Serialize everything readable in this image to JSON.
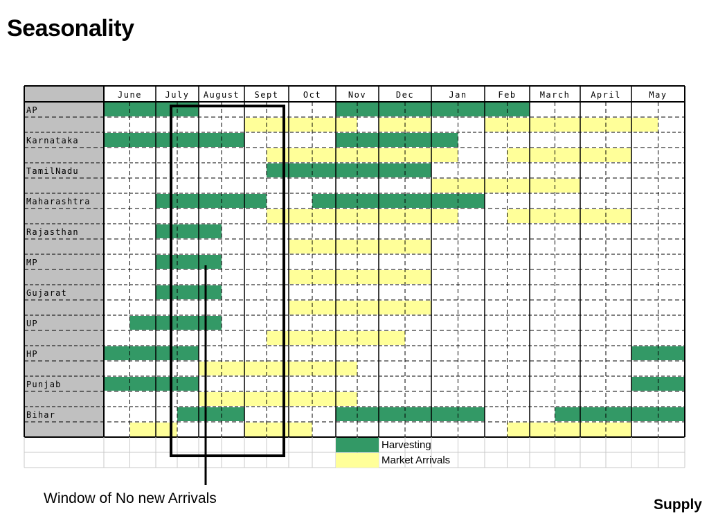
{
  "page": {
    "title": "Seasonality",
    "annotation": "Window of No new Arrivals",
    "section": "Supply"
  },
  "colors": {
    "harvesting": "#339966",
    "market_arrivals": "#ffff99",
    "state_column": "#c0c0c0"
  },
  "chart_data": {
    "type": "table",
    "months": [
      "June",
      "July",
      "August",
      "Sept",
      "Oct",
      "Nov",
      "Dec",
      "Jan",
      "Feb",
      "March",
      "April",
      "May"
    ],
    "rows": [
      {
        "state": "AP",
        "harvesting": [
          [
            0,
            4
          ],
          [
            10,
            18
          ]
        ],
        "arrivals": [
          [
            6,
            11
          ],
          [
            12,
            14
          ],
          [
            16,
            23
          ]
        ]
      },
      {
        "state": "Karnataka",
        "harvesting": [
          [
            0,
            6
          ],
          [
            10,
            15
          ]
        ],
        "arrivals": [
          [
            7,
            15
          ],
          [
            17,
            22
          ]
        ]
      },
      {
        "state": "TamilNadu",
        "harvesting": [
          [
            7,
            14
          ]
        ],
        "arrivals": [
          [
            14,
            20
          ]
        ]
      },
      {
        "state": "Maharashtra",
        "harvesting": [
          [
            2,
            7
          ],
          [
            9,
            16
          ]
        ],
        "arrivals": [
          [
            7,
            15
          ],
          [
            17,
            22
          ]
        ]
      },
      {
        "state": "Rajasthan",
        "harvesting": [
          [
            2,
            5
          ]
        ],
        "arrivals": [
          [
            8,
            14
          ]
        ]
      },
      {
        "state": "MP",
        "harvesting": [
          [
            2,
            5
          ]
        ],
        "arrivals": [
          [
            8,
            14
          ]
        ]
      },
      {
        "state": "Gujarat",
        "harvesting": [
          [
            2,
            5
          ]
        ],
        "arrivals": [
          [
            8,
            14
          ]
        ]
      },
      {
        "state": "UP",
        "harvesting": [
          [
            1,
            5
          ]
        ],
        "arrivals": [
          [
            7,
            13
          ]
        ]
      },
      {
        "state": "HP",
        "harvesting": [
          [
            0,
            4
          ],
          [
            22,
            24
          ]
        ],
        "arrivals": [
          [
            4,
            11
          ]
        ]
      },
      {
        "state": "Punjab",
        "harvesting": [
          [
            0,
            4
          ],
          [
            22,
            24
          ]
        ],
        "arrivals": [
          [
            4,
            11
          ]
        ]
      },
      {
        "state": "Bihar",
        "harvesting": [
          [
            3,
            6
          ],
          [
            10,
            16
          ],
          [
            19,
            24
          ]
        ],
        "arrivals": [
          [
            1,
            3
          ],
          [
            6,
            9
          ],
          [
            17,
            22
          ]
        ]
      }
    ],
    "legend": [
      {
        "label": "Harvesting",
        "key": "harvesting"
      },
      {
        "label": "Market Arrivals",
        "key": "market_arrivals"
      }
    ],
    "window_months": [
      "July",
      "August",
      "Sept"
    ]
  }
}
